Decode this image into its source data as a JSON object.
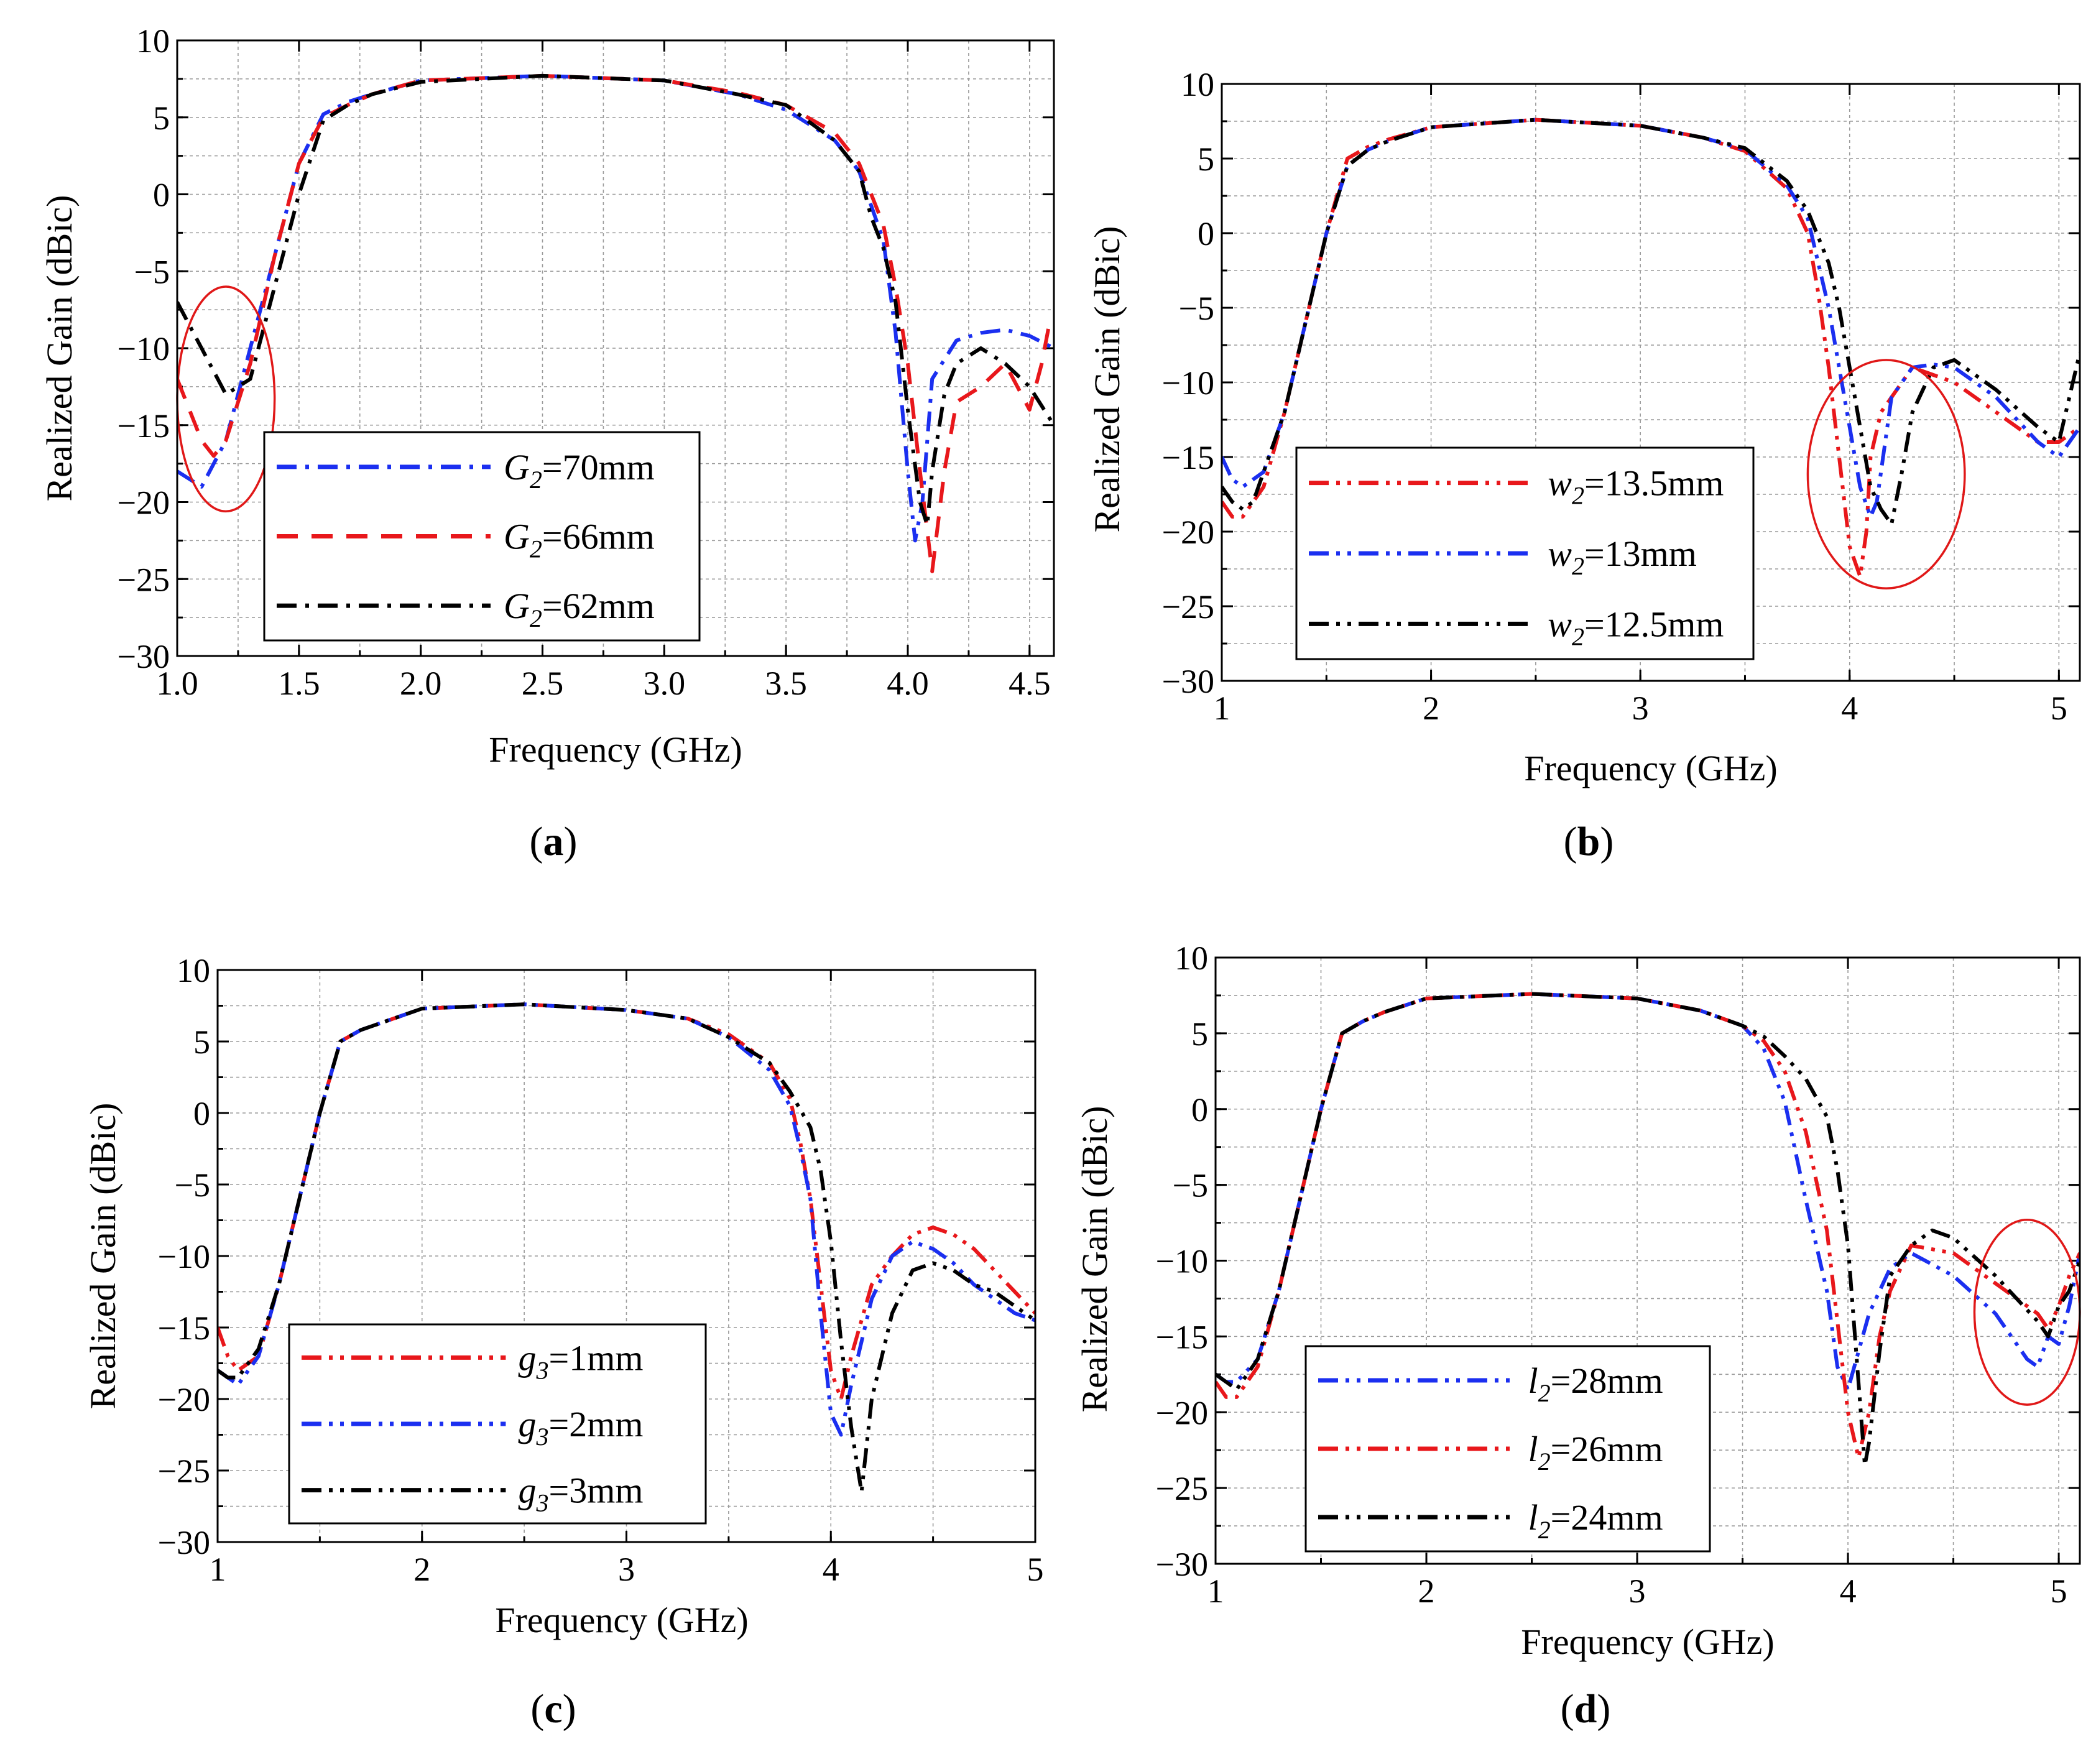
{
  "figure": {
    "colors": {
      "red": "#e8171b",
      "blue": "#1b2ff0",
      "black": "#000000",
      "annotation": "#e01818"
    }
  },
  "chart_data": [
    {
      "type": "line",
      "caption": "a",
      "xlabel": "Frequency (GHz)",
      "ylabel": "Realized Gain (dBic)",
      "xlim": [
        1.0,
        4.6
      ],
      "ylim": [
        -30,
        10
      ],
      "xticks": [
        "1.0",
        "1.5",
        "2.0",
        "2.5",
        "3.0",
        "3.5",
        "4.0",
        "4.5"
      ],
      "yticks": [
        "10",
        "5",
        "0",
        "−5",
        "−10",
        "−15",
        "−20",
        "−25",
        "−30"
      ],
      "grid": true,
      "legend_position": "lower-left",
      "annotation": {
        "shape": "ellipse",
        "x_range": [
          1.0,
          1.4
        ],
        "y_range": [
          -20.6,
          -6.0
        ]
      },
      "series": [
        {
          "name": "70mm",
          "legend_symbol": "G",
          "legend_sub": "2",
          "color": "blue",
          "style": "dashdot",
          "x": [
            1.0,
            1.1,
            1.2,
            1.25,
            1.3,
            1.4,
            1.5,
            1.6,
            1.7,
            1.8,
            2.0,
            2.5,
            3.0,
            3.3,
            3.5,
            3.7,
            3.8,
            3.9,
            3.95,
            4.0,
            4.03,
            4.06,
            4.1,
            4.2,
            4.3,
            4.4,
            4.5,
            4.6
          ],
          "y": [
            -18,
            -19,
            -16,
            -13,
            -10,
            -4,
            2,
            5.2,
            6,
            6.5,
            7.4,
            7.7,
            7.4,
            6.5,
            5.5,
            3.5,
            1.5,
            -3,
            -9,
            -18,
            -22.5,
            -20,
            -12,
            -9.5,
            -9,
            -8.8,
            -9.2,
            -10
          ]
        },
        {
          "name": "66mm",
          "legend_symbol": "G",
          "legend_sub": "2",
          "color": "red",
          "style": "dash",
          "x": [
            1.0,
            1.05,
            1.1,
            1.15,
            1.2,
            1.3,
            1.4,
            1.5,
            1.6,
            1.7,
            1.8,
            2.0,
            2.5,
            3.0,
            3.3,
            3.5,
            3.7,
            3.8,
            3.9,
            3.95,
            4.0,
            4.05,
            4.1,
            4.15,
            4.2,
            4.3,
            4.4,
            4.5,
            4.55,
            4.58
          ],
          "y": [
            -12,
            -14,
            -16,
            -17,
            -16,
            -11,
            -4,
            2,
            5,
            5.8,
            6.5,
            7.4,
            7.7,
            7.4,
            6.6,
            5.8,
            4,
            2,
            -2,
            -6,
            -11,
            -18,
            -24.5,
            -18,
            -13.5,
            -12.5,
            -11,
            -14,
            -11,
            -8.5
          ]
        },
        {
          "name": "62mm",
          "legend_symbol": "G",
          "legend_sub": "2",
          "color": "black",
          "style": "dashdot",
          "x": [
            1.0,
            1.1,
            1.2,
            1.3,
            1.4,
            1.5,
            1.6,
            1.7,
            1.8,
            2.0,
            2.5,
            3.0,
            3.3,
            3.5,
            3.7,
            3.8,
            3.85,
            3.9,
            3.95,
            4.0,
            4.05,
            4.08,
            4.1,
            4.15,
            4.2,
            4.3,
            4.4,
            4.5,
            4.6
          ],
          "y": [
            -7,
            -10,
            -13,
            -12,
            -6,
            0,
            4.8,
            5.8,
            6.5,
            7.3,
            7.7,
            7.4,
            6.5,
            5.8,
            3.5,
            1.5,
            -1.5,
            -3.5,
            -7,
            -14,
            -20,
            -21.5,
            -18,
            -13,
            -11,
            -10,
            -11,
            -12.5,
            -15
          ]
        }
      ]
    },
    {
      "type": "line",
      "caption": "b",
      "xlabel": "Frequency (GHz)",
      "ylabel": "Realized Gain (dBic)",
      "xlim": [
        1,
        5.1
      ],
      "ylim": [
        -30,
        10
      ],
      "xticks": [
        "1",
        "2",
        "3",
        "4",
        "5"
      ],
      "yticks": [
        "10",
        "5",
        "0",
        "−5",
        "−10",
        "−15",
        "−20",
        "−25",
        "−30"
      ],
      "grid": true,
      "legend_position": "lower-left",
      "annotation": {
        "shape": "ellipse",
        "x_range": [
          3.8,
          4.55
        ],
        "y_range": [
          -23.8,
          -8.5
        ]
      },
      "series": [
        {
          "name": "13.5mm",
          "legend_symbol": "w",
          "legend_sub": "2",
          "color": "red",
          "style": "dashdotdot",
          "x": [
            1.0,
            1.05,
            1.1,
            1.2,
            1.3,
            1.4,
            1.5,
            1.6,
            1.7,
            1.8,
            2.0,
            2.5,
            3.0,
            3.3,
            3.5,
            3.7,
            3.8,
            3.85,
            3.9,
            3.95,
            4.0,
            4.05,
            4.08,
            4.1,
            4.15,
            4.2,
            4.3,
            4.4,
            4.5,
            4.7,
            4.9,
            5.0,
            5.1
          ],
          "y": [
            -18,
            -19,
            -19,
            -17,
            -12,
            -6,
            0,
            5,
            5.8,
            6.3,
            7.1,
            7.6,
            7.2,
            6.4,
            5.5,
            3,
            0,
            -4,
            -9,
            -15,
            -21,
            -23,
            -20,
            -15,
            -12,
            -11,
            -9,
            -9.5,
            -10,
            -12,
            -14,
            -14,
            -13
          ]
        },
        {
          "name": "13mm",
          "legend_symbol": "w",
          "legend_sub": "2",
          "color": "blue",
          "style": "dashdotdot",
          "x": [
            1.0,
            1.05,
            1.1,
            1.2,
            1.3,
            1.4,
            1.5,
            1.6,
            1.7,
            1.8,
            2.0,
            2.5,
            3.0,
            3.3,
            3.5,
            3.7,
            3.8,
            3.85,
            3.9,
            3.95,
            4.0,
            4.05,
            4.1,
            4.13,
            4.15,
            4.2,
            4.3,
            4.4,
            4.5,
            4.7,
            4.9,
            5.0,
            5.1
          ],
          "y": [
            -15,
            -16.5,
            -17,
            -16,
            -12,
            -6,
            0,
            4.5,
            5.6,
            6.2,
            7.1,
            7.6,
            7.2,
            6.4,
            5.6,
            3.2,
            1,
            -2,
            -5,
            -9,
            -13,
            -17,
            -19,
            -18,
            -16,
            -11,
            -9,
            -8.8,
            -9,
            -11,
            -14,
            -15,
            -13
          ]
        },
        {
          "name": "12.5mm",
          "legend_symbol": "w",
          "legend_sub": "2",
          "color": "black",
          "style": "dashdotdot",
          "x": [
            1.0,
            1.05,
            1.1,
            1.15,
            1.2,
            1.3,
            1.4,
            1.5,
            1.6,
            1.7,
            1.8,
            2.0,
            2.5,
            3.0,
            3.3,
            3.5,
            3.7,
            3.8,
            3.9,
            3.95,
            4.0,
            4.05,
            4.1,
            4.15,
            4.2,
            4.25,
            4.3,
            4.4,
            4.5,
            4.7,
            4.9,
            5.0,
            5.1
          ],
          "y": [
            -17,
            -18,
            -18.5,
            -18,
            -16,
            -12,
            -6,
            0,
            4.5,
            5.6,
            6.2,
            7.1,
            7.6,
            7.2,
            6.4,
            5.7,
            3.5,
            1.5,
            -2,
            -5,
            -9,
            -13,
            -17,
            -18.5,
            -19.5,
            -16,
            -12,
            -9,
            -8.5,
            -10.5,
            -13,
            -14,
            -8
          ]
        }
      ]
    },
    {
      "type": "line",
      "caption": "c",
      "xlabel": "Frequency (GHz)",
      "ylabel": "Realized Gain (dBic)",
      "xlim": [
        1,
        5
      ],
      "ylim": [
        -30,
        10
      ],
      "xticks": [
        "1",
        "2",
        "3",
        "4",
        "5"
      ],
      "yticks": [
        "10",
        "5",
        "0",
        "−5",
        "−10",
        "−15",
        "−20",
        "−25",
        "−30"
      ],
      "grid": true,
      "legend_position": "lower-left",
      "series": [
        {
          "name": "1mm",
          "legend_symbol": "g",
          "legend_sub": "3",
          "color": "red",
          "style": "dashdotdot",
          "x": [
            1.0,
            1.05,
            1.1,
            1.2,
            1.3,
            1.4,
            1.5,
            1.6,
            1.7,
            1.8,
            2.0,
            2.5,
            3.0,
            3.3,
            3.5,
            3.7,
            3.8,
            3.85,
            3.9,
            3.95,
            4.0,
            4.05,
            4.1,
            4.2,
            4.3,
            4.4,
            4.5,
            4.6,
            4.7,
            4.8,
            4.9,
            5.0
          ],
          "y": [
            -15,
            -17,
            -18,
            -17,
            -12,
            -6,
            0,
            5,
            5.8,
            6.3,
            7.3,
            7.6,
            7.2,
            6.6,
            5.5,
            3.5,
            1,
            -2,
            -6,
            -12,
            -18,
            -20,
            -17,
            -12,
            -10,
            -8.5,
            -8,
            -8.5,
            -9.5,
            -11,
            -12.5,
            -14
          ]
        },
        {
          "name": "2mm",
          "legend_symbol": "g",
          "legend_sub": "3",
          "color": "blue",
          "style": "dashdotdot",
          "x": [
            1.0,
            1.05,
            1.1,
            1.2,
            1.3,
            1.4,
            1.5,
            1.6,
            1.7,
            1.8,
            2.0,
            2.5,
            3.0,
            3.3,
            3.5,
            3.7,
            3.8,
            3.85,
            3.9,
            3.95,
            4.0,
            4.05,
            4.1,
            4.2,
            4.3,
            4.4,
            4.5,
            4.6,
            4.7,
            4.8,
            4.9,
            5.0
          ],
          "y": [
            -18,
            -18.5,
            -19,
            -17,
            -12,
            -6,
            0,
            5,
            5.8,
            6.3,
            7.3,
            7.6,
            7.2,
            6.6,
            5.3,
            3,
            0.5,
            -2.5,
            -6,
            -14,
            -21,
            -22.5,
            -19,
            -13,
            -10,
            -9,
            -9.5,
            -10.5,
            -12,
            -13,
            -14,
            -14.5
          ]
        },
        {
          "name": "3mm",
          "legend_symbol": "g",
          "legend_sub": "3",
          "color": "black",
          "style": "dashdotdot",
          "x": [
            1.0,
            1.05,
            1.1,
            1.2,
            1.3,
            1.4,
            1.5,
            1.6,
            1.7,
            1.8,
            2.0,
            2.5,
            3.0,
            3.3,
            3.5,
            3.7,
            3.8,
            3.9,
            3.95,
            4.0,
            4.05,
            4.1,
            4.15,
            4.2,
            4.3,
            4.4,
            4.5,
            4.6,
            4.7,
            4.8,
            4.9,
            5.0
          ],
          "y": [
            -18,
            -18.5,
            -18.5,
            -16.5,
            -12,
            -6,
            0,
            5,
            5.8,
            6.3,
            7.3,
            7.6,
            7.2,
            6.6,
            5.3,
            3.5,
            1.5,
            -1,
            -4,
            -9,
            -16,
            -22,
            -26.5,
            -20,
            -14,
            -11,
            -10.5,
            -11,
            -12,
            -12.5,
            -13.5,
            -14.5
          ]
        }
      ]
    },
    {
      "type": "line",
      "caption": "d",
      "xlabel": "Frequency (GHz)",
      "ylabel": "Realized Gain (dBic)",
      "xlim": [
        1,
        5.1
      ],
      "ylim": [
        -30,
        10
      ],
      "xticks": [
        "1",
        "2",
        "3",
        "4",
        "5"
      ],
      "yticks": [
        "10",
        "5",
        "0",
        "−5",
        "−10",
        "−15",
        "−20",
        "−25",
        "−30"
      ],
      "grid": true,
      "legend_position": "lower-left",
      "annotation": {
        "shape": "ellipse",
        "x_range": [
          4.6,
          5.1
        ],
        "y_range": [
          -19.5,
          -7.3
        ]
      },
      "series": [
        {
          "name": "28mm",
          "legend_symbol": "l",
          "legend_sub": "2",
          "color": "blue",
          "style": "dashdotdot",
          "x": [
            1.0,
            1.05,
            1.1,
            1.2,
            1.3,
            1.4,
            1.5,
            1.6,
            1.7,
            1.8,
            2.0,
            2.5,
            3.0,
            3.3,
            3.5,
            3.6,
            3.7,
            3.8,
            3.9,
            3.95,
            4.0,
            4.05,
            4.1,
            4.2,
            4.3,
            4.5,
            4.7,
            4.8,
            4.85,
            4.9,
            4.95,
            5.0,
            5.05,
            5.1
          ],
          "y": [
            -17.5,
            -18,
            -18,
            -16.5,
            -12,
            -6,
            0,
            5,
            5.8,
            6.4,
            7.3,
            7.6,
            7.3,
            6.5,
            5.5,
            4,
            0.5,
            -6,
            -12,
            -17,
            -18.5,
            -16,
            -13.5,
            -10.5,
            -9.5,
            -11,
            -13.5,
            -15.5,
            -16.5,
            -17,
            -15,
            -15.5,
            -13,
            -9.5
          ]
        },
        {
          "name": "26mm",
          "legend_symbol": "l",
          "legend_sub": "2",
          "color": "red",
          "style": "dashdotdot",
          "x": [
            1.0,
            1.05,
            1.1,
            1.2,
            1.3,
            1.4,
            1.5,
            1.6,
            1.7,
            1.8,
            2.0,
            2.5,
            3.0,
            3.3,
            3.5,
            3.6,
            3.7,
            3.8,
            3.9,
            3.95,
            4.0,
            4.05,
            4.1,
            4.15,
            4.2,
            4.3,
            4.5,
            4.7,
            4.9,
            4.95,
            5.0,
            5.05,
            5.1
          ],
          "y": [
            -18,
            -19,
            -19,
            -17,
            -12,
            -6,
            0,
            5,
            5.8,
            6.4,
            7.3,
            7.6,
            7.3,
            6.5,
            5.5,
            4.5,
            2.5,
            -1.5,
            -8,
            -14,
            -20,
            -23,
            -20,
            -15,
            -12,
            -9,
            -9.5,
            -11.5,
            -13.5,
            -14.5,
            -13,
            -11,
            -9.5
          ]
        },
        {
          "name": "24mm",
          "legend_symbol": "l",
          "legend_sub": "2",
          "color": "black",
          "style": "dashdotdot",
          "x": [
            1.0,
            1.05,
            1.1,
            1.2,
            1.3,
            1.4,
            1.5,
            1.6,
            1.7,
            1.8,
            2.0,
            2.5,
            3.0,
            3.3,
            3.5,
            3.6,
            3.7,
            3.8,
            3.9,
            3.95,
            4.0,
            4.05,
            4.08,
            4.1,
            4.15,
            4.2,
            4.3,
            4.4,
            4.5,
            4.7,
            4.9,
            4.95,
            5.0,
            5.05,
            5.1
          ],
          "y": [
            -17.5,
            -18,
            -18.5,
            -16.5,
            -12,
            -6,
            0,
            5,
            5.8,
            6.4,
            7.3,
            7.6,
            7.3,
            6.5,
            5.5,
            4.8,
            3.5,
            2,
            -0.5,
            -4,
            -9,
            -18,
            -23.5,
            -22,
            -16,
            -11,
            -9,
            -8,
            -8.5,
            -11,
            -14,
            -15,
            -13,
            -12,
            -10
          ]
        }
      ]
    }
  ]
}
